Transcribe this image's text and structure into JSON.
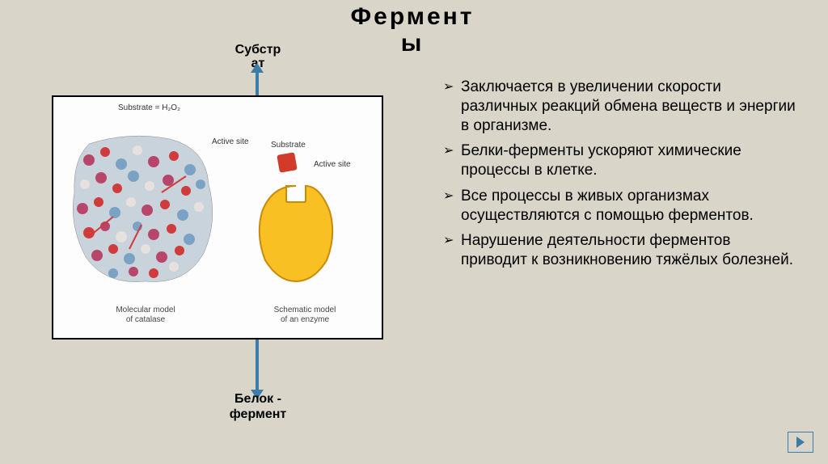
{
  "colors": {
    "background": "#d9d5c9",
    "text": "#000000",
    "arrow": "#3b7ca8",
    "diagram_bg": "#fdfdfd",
    "diagram_border": "#000000",
    "substrate": "#d23a2a",
    "enzyme_fill": "#f8c023",
    "enzyme_stroke": "#c98a0a",
    "mol_fill": "#b8466a",
    "mol_spot": "#7aa2c4",
    "mol_spot2": "#d03b3b",
    "mol_spot3": "#e6e0df"
  },
  "typography": {
    "title_size": 30,
    "label_size": 16,
    "bullet_size": 19,
    "caption_size": 10
  },
  "title": "Фермент\nы",
  "label_top": "Субстр\nат",
  "label_bottom": "Белок -\nфермент",
  "diagram": {
    "substrate_label": "Substrate = H₂O₂",
    "active_site_1": "Active site",
    "substrate_small": "Substrate",
    "active_site_2": "Active site",
    "caption_mol": "Molecular model\nof catalase",
    "caption_enz": "Schematic model\nof an enzyme"
  },
  "bullets": [
    "Заключается в увеличении скорости различных реакций обмена веществ и энергии в организме.",
    "Белки-ферменты ускоряют химические процессы в клетке.",
    "Все процессы в живых организмах осуществляются с помощью ферментов.",
    "Нарушение деятельности ферментов приводит к возникновению тяжёлых болезней."
  ],
  "nav": {
    "next": "next"
  }
}
